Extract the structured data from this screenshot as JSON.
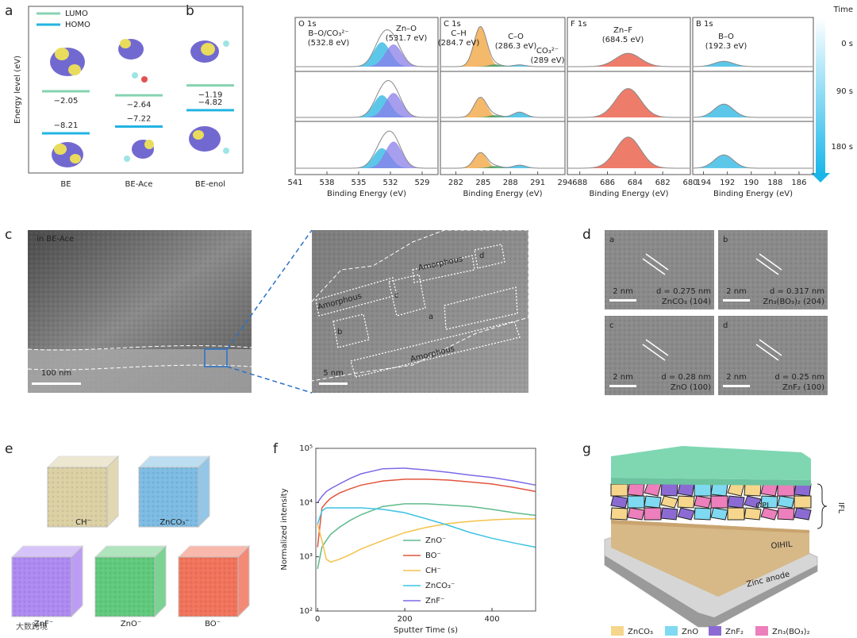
{
  "panels": {
    "a": {
      "label": "a",
      "legend": [
        {
          "name": "LUMO",
          "color": "#86d3b0"
        },
        {
          "name": "HOMO",
          "color": "#22b4e2"
        }
      ],
      "ylabel": "Energy level (eV)",
      "molecules": [
        {
          "name": "BE",
          "lumo": -2.05,
          "lumo_label": "−2.05",
          "homo": -8.21,
          "homo_label": "−8.21"
        },
        {
          "name": "BE-Ace",
          "lumo": -2.64,
          "lumo_label": "−2.64",
          "homo": -7.22,
          "homo_label": "−7.22"
        },
        {
          "name": "BE-enol",
          "lumo": -1.19,
          "lumo_label": "−1.19",
          "homo": -4.82,
          "homo_label": "−4.82"
        }
      ]
    },
    "b": {
      "label": "b",
      "xlabel": "Binding Energy (eV)",
      "colorbar": {
        "title": "Time",
        "ticks": [
          "0 s",
          "90 s",
          "180 s"
        ]
      },
      "spectra": [
        {
          "title": "O 1s",
          "xlim": [
            541,
            527.5
          ],
          "xticks": [
            541,
            538,
            535,
            532,
            529
          ],
          "components": [
            {
              "name": "B–O/CO₃²⁻",
              "position_label": "(532.8 eV)",
              "center": 532.8,
              "width": 0.8,
              "color": "#27b4e2",
              "heights": [
                0.55,
                0.5,
                0.45
              ]
            },
            {
              "name": "Zn–O",
              "position_label": "(531.7 eV)",
              "center": 531.7,
              "width": 0.8,
              "color": "#8a7ee8",
              "heights": [
                0.5,
                0.55,
                0.6
              ]
            }
          ]
        },
        {
          "title": "C 1s",
          "xlim": [
            280.3,
            294
          ],
          "xticks": [
            282,
            285,
            288,
            291,
            294
          ],
          "components": [
            {
              "name": "C–H",
              "position_label": "(284.7 eV)",
              "center": 284.7,
              "width": 0.7,
              "color": "#f0a238",
              "heights": [
                0.9,
                0.45,
                0.35
              ]
            },
            {
              "name": "C–O",
              "position_label": "(286.3 eV)",
              "center": 286.3,
              "width": 0.7,
              "color": "#2f9a68",
              "heights": [
                0.05,
                0.05,
                0.05
              ]
            },
            {
              "name": "CO₃²⁻",
              "position_label": "(289 eV)",
              "center": 289,
              "width": 0.7,
              "color": "#27b4e2",
              "heights": [
                0.04,
                0.12,
                0.07
              ]
            }
          ]
        },
        {
          "title": "F 1s",
          "xlim": [
            688.9,
            680
          ],
          "xticks": [
            688,
            686,
            684,
            682,
            680
          ],
          "components": [
            {
              "name": "Zn–F",
              "position_label": "(684.5 eV)",
              "center": 684.5,
              "width": 0.9,
              "color": "#e8503a",
              "heights": [
                0.3,
                0.65,
                0.7
              ]
            }
          ]
        },
        {
          "title": "B 1s",
          "xlim": [
            194.9,
            184.8
          ],
          "xticks": [
            194,
            192,
            190,
            188,
            186
          ],
          "components": [
            {
              "name": "B–O",
              "position_label": "(192.3 eV)",
              "center": 192.3,
              "width": 0.8,
              "color": "#27b4e2",
              "heights": [
                0.12,
                0.3,
                0.3
              ]
            }
          ]
        }
      ]
    },
    "c": {
      "label": "c",
      "caption": "in BE-Ace",
      "scale_left": "100 nm",
      "scale_right": "5 nm",
      "regions": [
        "Amorphous",
        "Amorphous",
        "Amorphous",
        "a",
        "b",
        "c",
        "d"
      ]
    },
    "d": {
      "label": "d",
      "images": [
        {
          "letter": "a",
          "scale": "2 nm",
          "spacing": "d = 0.275 nm",
          "plane": "ZnCO₃ (104)"
        },
        {
          "letter": "b",
          "scale": "2 nm",
          "spacing": "d = 0.317 nm",
          "plane": "Zn₃(BO₃)₂ (204)"
        },
        {
          "letter": "c",
          "scale": "2 nm",
          "spacing": "d = 0.28 nm",
          "plane": "ZnO (100)"
        },
        {
          "letter": "d",
          "scale": "2 nm",
          "spacing": "d = 0.25 nm",
          "plane": "ZnF₂ (100)"
        }
      ]
    },
    "e": {
      "label": "e",
      "cubes": [
        {
          "name": "CH⁻",
          "color": "#d8cc9a"
        },
        {
          "name": "ZnCO₃⁻",
          "color": "#6fb4e0"
        },
        {
          "name": "ZnF⁻",
          "color": "#a57ef0"
        },
        {
          "name": "ZnO⁻",
          "color": "#4fc46e"
        },
        {
          "name": "BO⁻",
          "color": "#f0644a"
        }
      ]
    },
    "f": {
      "label": "f"
    },
    "g": {
      "label": "g",
      "layers": [
        "OPL",
        "IFL",
        "OIHIL",
        "Zinc anode"
      ],
      "legend": [
        {
          "name": "ZnCO₃",
          "color": "#f6d68c"
        },
        {
          "name": "ZnO",
          "color": "#7fd9f0"
        },
        {
          "name": "ZnF₂",
          "color": "#8b6bd3"
        },
        {
          "name": "Zn₃(BO₃)₂",
          "color": "#ec7fbc"
        }
      ]
    }
  },
  "watermark": "大数跨境",
  "chart_data": {
    "type": "line",
    "xlabel": "Sputter Time (s)",
    "ylabel": "Normalized intensity",
    "x": [
      0,
      10,
      20,
      30,
      50,
      75,
      100,
      150,
      200,
      250,
      300,
      350,
      400,
      450,
      500
    ],
    "xlim": [
      -4,
      500
    ],
    "xticks": [
      0,
      200,
      400
    ],
    "log_y": true,
    "ylim": [
      100,
      100000
    ],
    "yticks": [
      {
        "value": 100,
        "label": "10²"
      },
      {
        "value": 1000,
        "label": "10³"
      },
      {
        "value": 10000,
        "label": "10⁴"
      },
      {
        "value": 100000,
        "label": "10⁵"
      }
    ],
    "series": [
      {
        "name": "ZnO⁻",
        "color": "#5dbb8c",
        "values": [
          600,
          1500,
          2000,
          2600,
          3500,
          4700,
          6000,
          8500,
          9500,
          9500,
          9000,
          8500,
          7500,
          6500,
          5800
        ]
      },
      {
        "name": "BO⁻",
        "color": "#e2553e",
        "values": [
          1500,
          8000,
          10000,
          12000,
          15000,
          18000,
          21000,
          25000,
          27000,
          27000,
          26000,
          24000,
          22000,
          19000,
          16000
        ]
      },
      {
        "name": "CH⁻",
        "color": "#f4c24a",
        "values": [
          4000,
          2000,
          900,
          800,
          900,
          1100,
          1400,
          2000,
          2800,
          3500,
          4100,
          4500,
          4800,
          5000,
          5000
        ]
      },
      {
        "name": "ZnCO₃⁻",
        "color": "#3cc3e4",
        "values": [
          4000,
          7000,
          8000,
          8000,
          8000,
          8000,
          8000,
          7500,
          6500,
          5000,
          3800,
          2800,
          2200,
          1800,
          1500
        ]
      },
      {
        "name": "ZnF⁻",
        "color": "#7b6ae6",
        "values": [
          10000,
          13000,
          16000,
          18000,
          22000,
          28000,
          34000,
          42000,
          43000,
          40000,
          36000,
          32000,
          29000,
          25000,
          21000
        ]
      }
    ]
  }
}
